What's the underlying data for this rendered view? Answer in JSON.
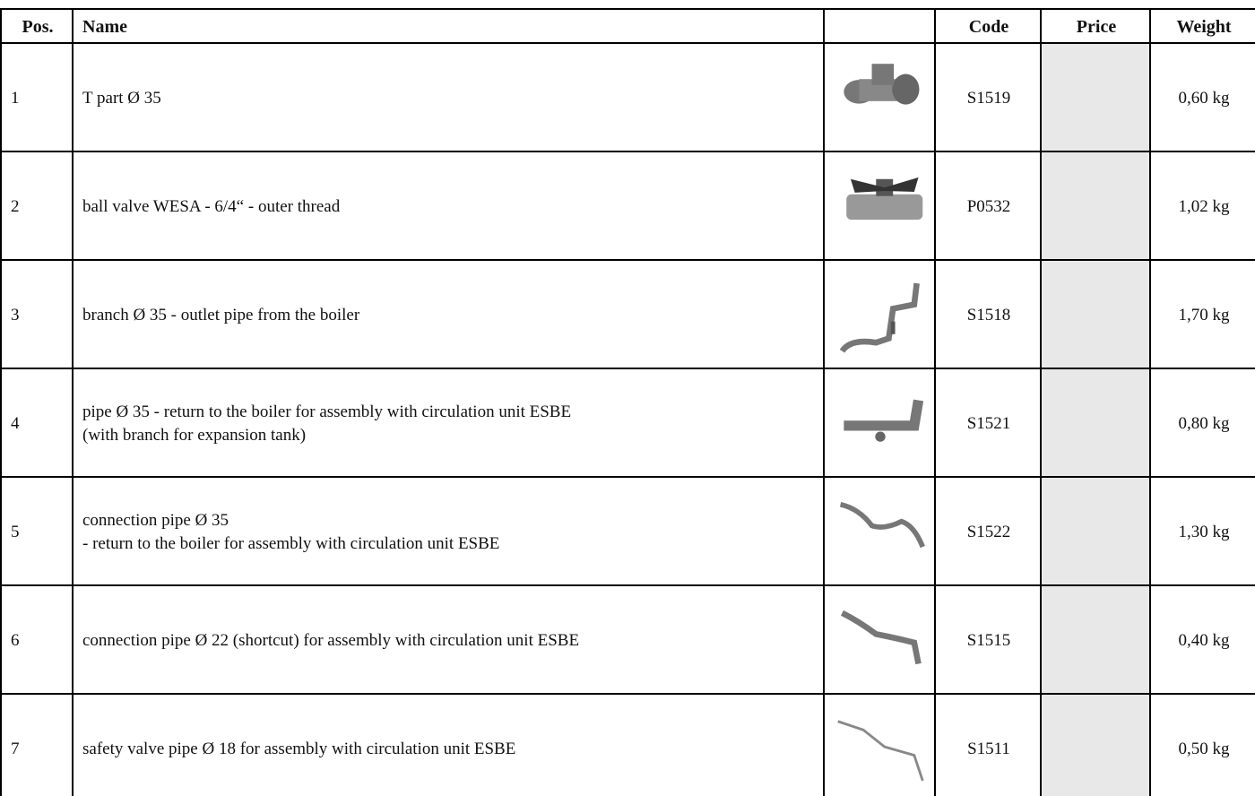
{
  "table": {
    "header": [
      "Pos.",
      "Name",
      "Code",
      "Price",
      "Weight"
    ],
    "rows": [
      {
        "pos": "1",
        "name": "T part Ø 35",
        "code": "S1519",
        "weight": "0,60 kg"
      },
      {
        "pos": "2",
        "name": "ball valve WESA - 6/4“ - outer thread",
        "code": "P0532",
        "weight": "1,02 kg"
      },
      {
        "pos": "3",
        "name": "branch Ø 35 - outlet pipe from the boiler",
        "code": "S1518",
        "weight": "1,70 kg"
      },
      {
        "pos": "4",
        "name": "pipe Ø 35 - return to the boiler for assembly with circulation unit ESBE\n(with branch for expansion tank)",
        "code": "S1521",
        "weight": "0,80 kg"
      },
      {
        "pos": "5",
        "name": "connection pipe Ø 35\n- return to the boiler for assembly with circulation unit ESBE",
        "code": "S1522",
        "weight": "1,30 kg"
      },
      {
        "pos": "6",
        "name": "connection pipe Ø 22 (shortcut) for assembly with circulation unit ESBE",
        "code": "S1515",
        "weight": "0,40 kg"
      },
      {
        "pos": "7",
        "name": "safety valve pipe Ø 18 for assembly with circulation unit ESBE",
        "code": "S1511",
        "weight": "0,50 kg"
      }
    ]
  }
}
